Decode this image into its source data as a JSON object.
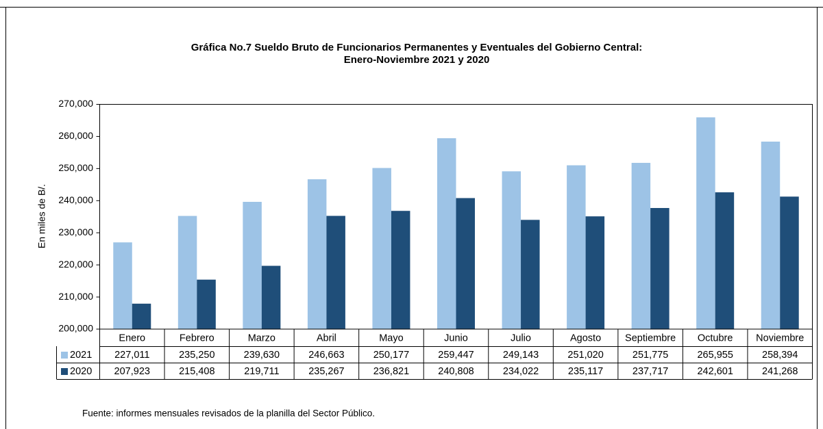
{
  "chart_data": {
    "type": "bar",
    "title": "Gráfica No.7 Sueldo Bruto de Funcionarios Permanentes y Eventuales del Gobierno Central:",
    "subtitle": "Enero-Noviembre  2021 y 2020",
    "ylabel": "En miles de B/.",
    "categories": [
      "Enero",
      "Febrero",
      "Marzo",
      "Abril",
      "Mayo",
      "Junio",
      "Julio",
      "Agosto",
      "Septiembre",
      "Octubre",
      "Noviembre"
    ],
    "series": [
      {
        "name": "2021",
        "color": "#9dc3e6",
        "values": [
          227011,
          235250,
          239630,
          246663,
          250177,
          259447,
          249143,
          251020,
          251775,
          265955,
          258394
        ],
        "value_labels": [
          "227,011",
          "235,250",
          "239,630",
          "246,663",
          "250,177",
          "259,447",
          "249,143",
          "251,020",
          "251,775",
          "265,955",
          "258,394"
        ]
      },
      {
        "name": "2020",
        "color": "#1f4e79",
        "values": [
          207923,
          215408,
          219711,
          235267,
          236821,
          240808,
          234022,
          235117,
          237717,
          242601,
          241268
        ],
        "value_labels": [
          "207,923",
          "215,408",
          "219,711",
          "235,267",
          "236,821",
          "240,808",
          "234,022",
          "235,117",
          "237,717",
          "242,601",
          "241,268"
        ]
      }
    ],
    "ylim": [
      200000,
      270000
    ],
    "yticks": [
      {
        "value": 200000,
        "label": "200,000"
      },
      {
        "value": 210000,
        "label": "210,000"
      },
      {
        "value": 220000,
        "label": "220,000"
      },
      {
        "value": 230000,
        "label": "230,000"
      },
      {
        "value": 240000,
        "label": "240,000"
      },
      {
        "value": 250000,
        "label": "250,000"
      },
      {
        "value": 260000,
        "label": "260,000"
      },
      {
        "value": 270000,
        "label": "270,000"
      }
    ],
    "note": "Fuente: informes mensuales revisados de la planilla del Sector Público."
  }
}
